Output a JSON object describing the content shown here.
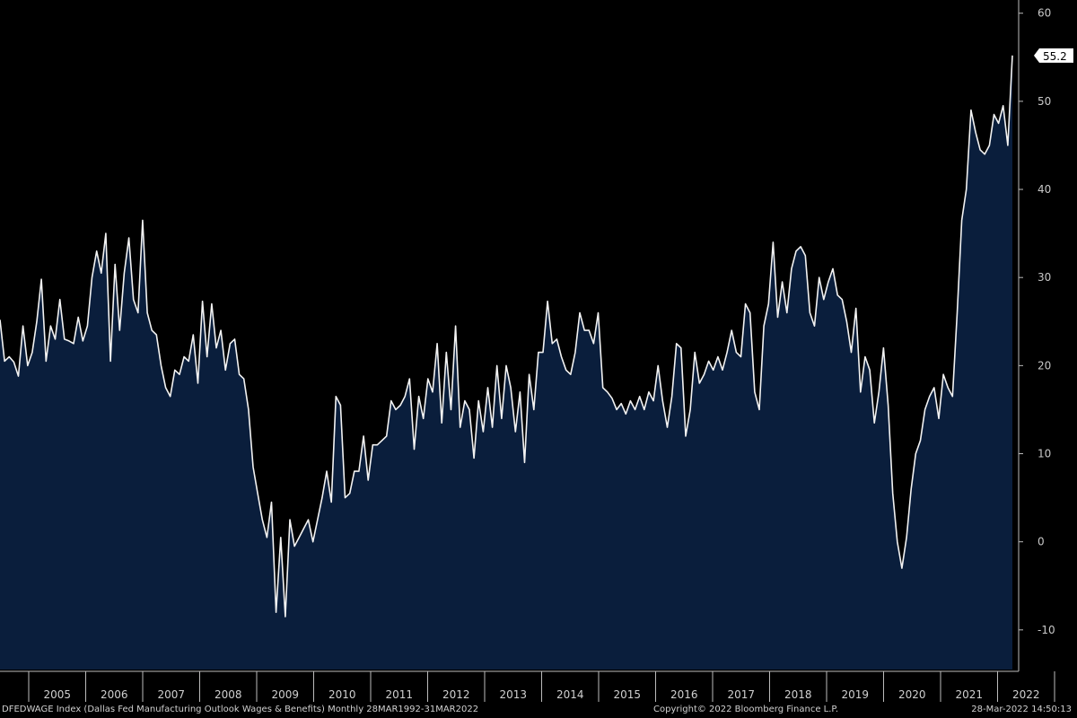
{
  "chart_data": {
    "type": "area",
    "series": [
      {
        "ticker": "DFEDWAGE Index",
        "last_value_label": "55.2",
        "values": [
          25.2,
          20.5,
          21,
          20.4,
          18.8,
          24.5,
          20,
          21.5,
          25,
          29.8,
          20.5,
          24.5,
          23,
          27.5,
          23,
          22.8,
          22.5,
          25.5,
          22.8,
          24.5,
          30,
          33,
          30.5,
          35,
          20.5,
          31.5,
          24,
          30.5,
          34.5,
          27.5,
          26,
          36.5,
          26,
          24,
          23.5,
          20,
          17.5,
          16.5,
          19.5,
          19,
          21,
          20.5,
          23.5,
          18,
          27.3,
          21,
          27,
          22,
          24,
          19.5,
          22.5,
          23,
          19,
          18.5,
          15,
          8.5,
          5.5,
          2.5,
          0.5,
          4.5,
          -8,
          0.5,
          -8.5,
          2.5,
          -0.5,
          0.5,
          1.5,
          2.5,
          0,
          2.5,
          5,
          8,
          4.5,
          16.5,
          15.5,
          5,
          5.5,
          8,
          8,
          12,
          7,
          11,
          11,
          11.5,
          12,
          16,
          15,
          15.5,
          16.5,
          18.5,
          10.5,
          16.5,
          14,
          18.5,
          17,
          22.5,
          13.5,
          21.5,
          15,
          24.5,
          13,
          16,
          15,
          9.5,
          16,
          12.5,
          17.5,
          13,
          20,
          14,
          20,
          17.5,
          12.5,
          17,
          9,
          19,
          15,
          21.5,
          21.5,
          27.3,
          22.5,
          23,
          21,
          19.5,
          19,
          21.5,
          26,
          24,
          24,
          22.5,
          26,
          17.5,
          17,
          16.3,
          15,
          15.7,
          14.5,
          16,
          15,
          16.5,
          15,
          17,
          16,
          20,
          16,
          13,
          16.5,
          22.5,
          22,
          12,
          15,
          21.5,
          18,
          19,
          20.5,
          19.5,
          21,
          19.5,
          21.5,
          24,
          21.5,
          21,
          27,
          26,
          17,
          15,
          24.5,
          27,
          34,
          25.5,
          29.5,
          26,
          31,
          33,
          33.5,
          32.5,
          26,
          24.5,
          30,
          27.5,
          29.5,
          31,
          28,
          27.5,
          25,
          21.5,
          26.5,
          17,
          21,
          19.5,
          13.5,
          17,
          22,
          15.5,
          5.5,
          0,
          -3,
          0.5,
          6,
          10,
          11.5,
          15,
          16.5,
          17.5,
          14,
          19,
          17.5,
          16.5,
          26,
          36.5,
          40,
          49,
          46.5,
          44.5,
          44,
          45,
          48.5,
          47.5,
          49.5,
          45,
          55.2
        ]
      }
    ],
    "x_ticks": [
      "2005",
      "2006",
      "2007",
      "2008",
      "2009",
      "2010",
      "2011",
      "2012",
      "2013",
      "2014",
      "2015",
      "2016",
      "2017",
      "2018",
      "2019",
      "2020",
      "2021",
      "2022"
    ],
    "y_ticks": [
      60,
      50,
      40,
      30,
      20,
      10,
      0,
      -10
    ],
    "ylim": [
      -14.5,
      61.5
    ],
    "y_axis_side": "right",
    "grid": false,
    "colors": {
      "fill": "#0a1e3c",
      "line": "#f2f2f2",
      "background": "#000000",
      "label_box": "#ffffff"
    }
  },
  "footer": {
    "left": "DFEDWAGE Index (Dallas Fed Manufacturing Outlook Wages & Benefits)  Monthly 28MAR1992-31MAR2022",
    "center": "Copyright© 2022 Bloomberg Finance L.P.",
    "right": "28-Mar-2022 14:50:13"
  }
}
